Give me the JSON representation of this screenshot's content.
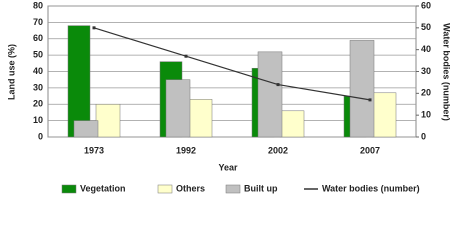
{
  "chart_data": {
    "type": "bar",
    "x_label": "Year",
    "y_label": "Land use (%)",
    "y2_label": "Water bodies (number)",
    "categories": [
      "1973",
      "1992",
      "2002",
      "2007"
    ],
    "series": [
      {
        "name": "Vegetation",
        "color": "#0a8a0a",
        "values": [
          68,
          46,
          42,
          25
        ]
      },
      {
        "name": "Others",
        "color": "#ffffcc",
        "values": [
          20,
          23,
          16,
          27
        ]
      },
      {
        "name": "Built up",
        "color": "#c0c0c0",
        "values": [
          10,
          35,
          52,
          59
        ]
      },
      {
        "name": "Water bodies (number)",
        "type": "line",
        "axis": "y2",
        "color": "#333333",
        "values": [
          50,
          37,
          24,
          17
        ]
      }
    ],
    "ylim": [
      0,
      80
    ],
    "yticks": [
      0,
      10,
      20,
      30,
      40,
      50,
      60,
      70,
      80
    ],
    "y2lim": [
      0,
      60
    ],
    "y2ticks": [
      0,
      10,
      20,
      30,
      40,
      50,
      60
    ],
    "grid": true,
    "legend": "bottom"
  }
}
